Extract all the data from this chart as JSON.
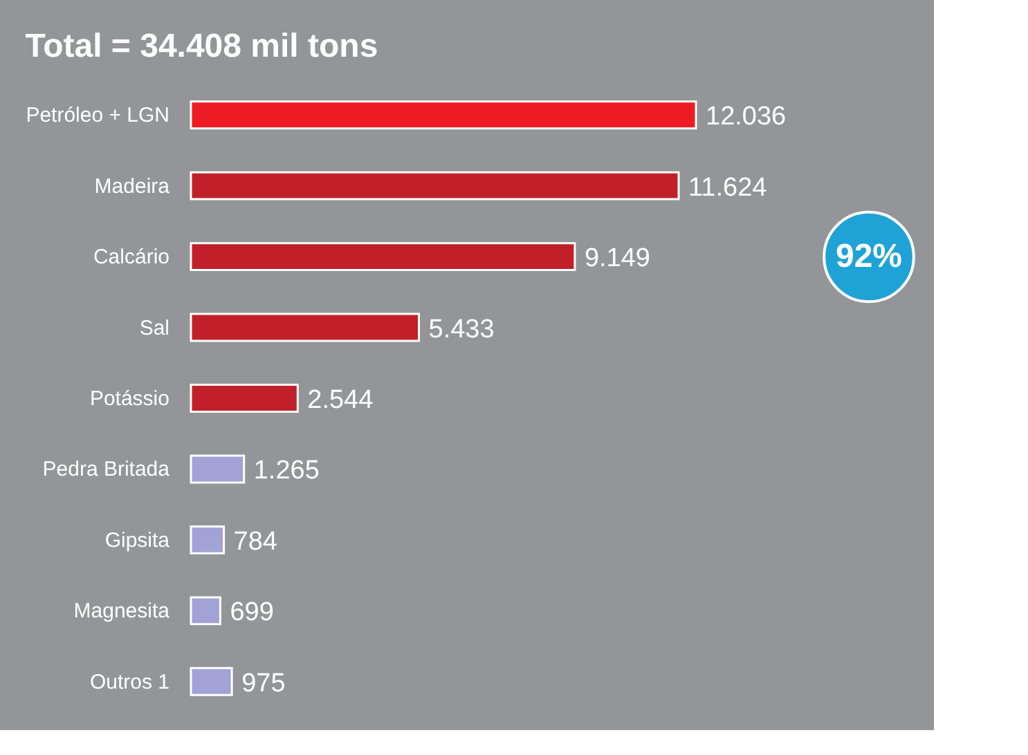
{
  "chart_data": {
    "type": "bar",
    "orientation": "horizontal",
    "title": "Total = 34.408 mil tons",
    "categories": [
      "Petróleo + LGN",
      "Madeira",
      "Calcário",
      "Sal",
      "Potássio",
      "Pedra Britada",
      "Gipsita",
      "Magnesita",
      "Outros 1"
    ],
    "values": [
      12036,
      11624,
      9149,
      5433,
      2544,
      1265,
      784,
      699,
      975
    ],
    "value_labels": [
      "12.036",
      "11.624",
      "9.149",
      "5.433",
      "2.544",
      "1.265",
      "784",
      "699",
      "975"
    ],
    "colors": [
      "#ed1c24",
      "#c1202a",
      "#c1202a",
      "#c1202a",
      "#c1202a",
      "#a3a2d6",
      "#a3a2d6",
      "#a3a2d6",
      "#a3a2d6"
    ],
    "annotations": [
      "92%"
    ]
  }
}
